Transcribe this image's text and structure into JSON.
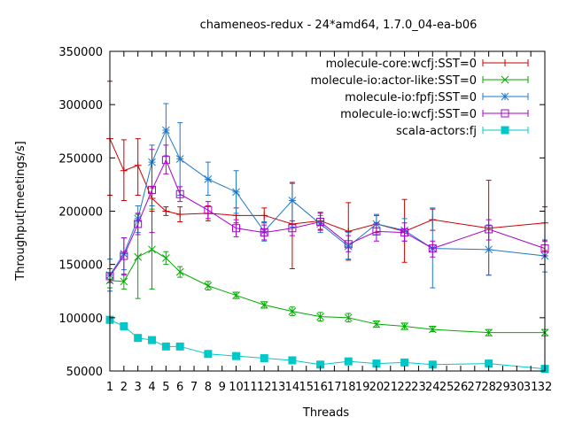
{
  "chart_data": {
    "type": "line",
    "title": "chameneos-redux - 24*amd64, 1.7.0_04-ea-b06",
    "xlabel": "Threads",
    "ylabel": "Throughput[meetings/s]",
    "xlim": [
      1,
      32
    ],
    "ylim": [
      50000,
      350000
    ],
    "grid": false,
    "legend_position": "top-right",
    "x_ticks": [
      1,
      2,
      3,
      4,
      5,
      6,
      7,
      8,
      9,
      10,
      11,
      12,
      13,
      14,
      15,
      16,
      17,
      18,
      19,
      20,
      21,
      22,
      23,
      24,
      25,
      26,
      27,
      28,
      29,
      30,
      31,
      32
    ],
    "y_ticks": [
      50000,
      100000,
      150000,
      200000,
      250000,
      300000,
      350000
    ],
    "series": [
      {
        "name": "molecule-core:wcfj:SST=0",
        "color": "#cc0000",
        "marker": "plus",
        "x": [
          1,
          2,
          3,
          4,
          5,
          6,
          8,
          10,
          12,
          14,
          16,
          18,
          20,
          22,
          24,
          28,
          32
        ],
        "y": [
          268000,
          238000,
          243000,
          212000,
          200000,
          197000,
          198000,
          196000,
          196000,
          188000,
          191000,
          181000,
          188000,
          181000,
          192000,
          184000,
          189000
        ],
        "err": [
          [
            215000,
            322000
          ],
          [
            210000,
            267000
          ],
          [
            215000,
            268000
          ],
          [
            200000,
            222000
          ],
          [
            196000,
            204000
          ],
          [
            190000,
            204000
          ],
          [
            191000,
            205000
          ],
          [
            189000,
            203000
          ],
          [
            189000,
            203000
          ],
          [
            146000,
            227000
          ],
          [
            183000,
            199000
          ],
          [
            154000,
            208000
          ],
          [
            180000,
            196000
          ],
          [
            152000,
            211000
          ],
          [
            182000,
            202000
          ],
          [
            140000,
            229000
          ],
          [
            163000,
            204000
          ]
        ]
      },
      {
        "name": "molecule-io:actor-like:SST=0",
        "color": "#00aa00",
        "marker": "x",
        "x": [
          1,
          2,
          3,
          4,
          5,
          6,
          8,
          10,
          12,
          14,
          16,
          18,
          20,
          22,
          24,
          28,
          32
        ],
        "y": [
          135000,
          134000,
          157000,
          164000,
          156000,
          143000,
          130000,
          121000,
          112000,
          106000,
          101000,
          100000,
          94000,
          92000,
          89000,
          86000,
          86000
        ],
        "err": [
          [
            128000,
            142000
          ],
          [
            127000,
            141000
          ],
          [
            118000,
            197000
          ],
          [
            127000,
            202000
          ],
          [
            150000,
            162000
          ],
          [
            138000,
            148000
          ],
          [
            126000,
            134000
          ],
          [
            118000,
            124000
          ],
          [
            109000,
            115000
          ],
          [
            102000,
            110000
          ],
          [
            97000,
            105000
          ],
          [
            96000,
            104000
          ],
          [
            91000,
            97000
          ],
          [
            89000,
            95000
          ],
          [
            87000,
            92000
          ],
          [
            83000,
            89000
          ],
          [
            83000,
            89000
          ]
        ]
      },
      {
        "name": "molecule-io:fpfj:SST=0",
        "color": "#1f78c8",
        "marker": "star",
        "x": [
          1,
          2,
          3,
          4,
          5,
          6,
          8,
          10,
          12,
          14,
          16,
          18,
          20,
          22,
          24,
          28,
          32
        ],
        "y": [
          140000,
          160000,
          193000,
          246000,
          276000,
          249000,
          230000,
          218000,
          181000,
          210000,
          188000,
          167000,
          188000,
          182000,
          165000,
          164000,
          158000
        ],
        "err": [
          [
            125000,
            155000
          ],
          [
            145000,
            175000
          ],
          [
            180000,
            205000
          ],
          [
            205000,
            262000
          ],
          [
            252000,
            301000
          ],
          [
            215000,
            283000
          ],
          [
            215000,
            246000
          ],
          [
            198000,
            238000
          ],
          [
            172000,
            190000
          ],
          [
            185000,
            226000
          ],
          [
            180000,
            196000
          ],
          [
            155000,
            180000
          ],
          [
            178000,
            197000
          ],
          [
            172000,
            193000
          ],
          [
            128000,
            203000
          ],
          [
            140000,
            187000
          ],
          [
            143000,
            173000
          ]
        ]
      },
      {
        "name": "molecule-io:wcfj:SST=0",
        "color": "#aa00cc",
        "marker": "square-open",
        "x": [
          1,
          2,
          3,
          4,
          5,
          6,
          8,
          10,
          12,
          14,
          16,
          18,
          20,
          22,
          24,
          28,
          32
        ],
        "y": [
          139000,
          158000,
          188000,
          220000,
          248000,
          216000,
          201000,
          184000,
          180000,
          184000,
          190000,
          169000,
          181000,
          180000,
          165000,
          183000,
          165000
        ],
        "err": [
          [
            133000,
            146000
          ],
          [
            140000,
            175000
          ],
          [
            178000,
            198000
          ],
          [
            180000,
            258000
          ],
          [
            235000,
            262000
          ],
          [
            209000,
            223000
          ],
          [
            193000,
            209000
          ],
          [
            176000,
            192000
          ],
          [
            173000,
            187000
          ],
          [
            177000,
            191000
          ],
          [
            182000,
            198000
          ],
          [
            162000,
            177000
          ],
          [
            172000,
            189000
          ],
          [
            172000,
            189000
          ],
          [
            157000,
            172000
          ],
          [
            173000,
            192000
          ],
          [
            158000,
            172000
          ]
        ]
      },
      {
        "name": "scala-actors:fj",
        "color": "#00c8c8",
        "marker": "square-filled",
        "x": [
          1,
          2,
          3,
          4,
          5,
          6,
          8,
          10,
          12,
          14,
          16,
          18,
          20,
          22,
          24,
          28,
          32
        ],
        "y": [
          98000,
          92000,
          81000,
          79000,
          73000,
          73000,
          66000,
          64000,
          62000,
          60000,
          56000,
          59000,
          57000,
          58000,
          56000,
          57000,
          52000
        ],
        "err": [
          [
            96000,
            100000
          ],
          [
            90000,
            94000
          ],
          [
            79000,
            83000
          ],
          [
            77000,
            81000
          ],
          [
            71000,
            75000
          ],
          [
            71000,
            75000
          ],
          [
            64000,
            68000
          ],
          [
            62000,
            66000
          ],
          [
            60000,
            64000
          ],
          [
            58000,
            62000
          ],
          [
            54000,
            58000
          ],
          [
            57000,
            61000
          ],
          [
            55000,
            59000
          ],
          [
            56000,
            60000
          ],
          [
            54000,
            58000
          ],
          [
            55000,
            59000
          ],
          [
            50000,
            54000
          ]
        ]
      }
    ]
  }
}
